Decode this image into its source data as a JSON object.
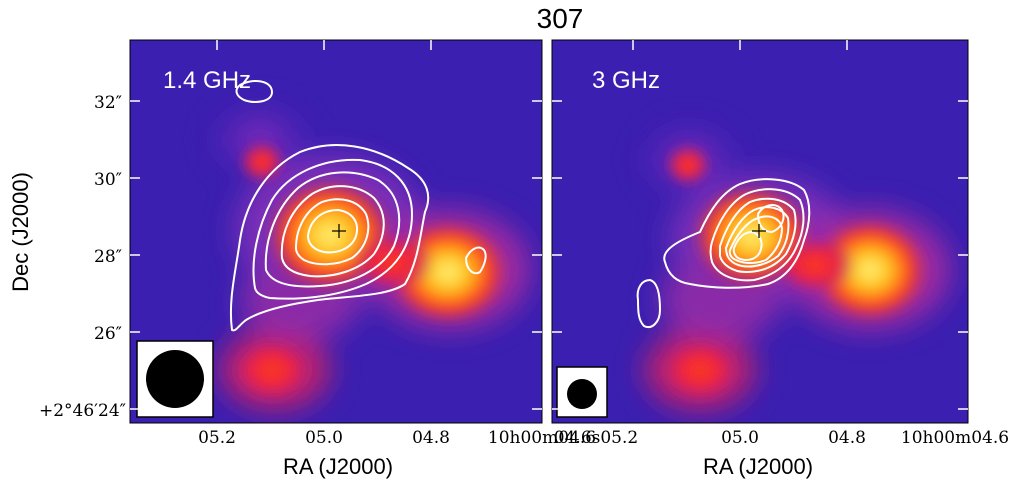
{
  "figure": {
    "title": "307",
    "ylabel": "Dec (J2000)",
    "xlabel": "RA (J2000)"
  },
  "panels": [
    {
      "label": "1.4 GHz",
      "x_tick_labels": [
        "05.2",
        "05.0",
        "04.8",
        "10h00m04.6"
      ],
      "y_tick_labels": [
        "32″",
        "30″",
        "28″",
        "26″",
        "+2°46′24″"
      ]
    },
    {
      "label": "3 GHz",
      "x_tick_labels": [
        "04.6s05.2",
        "05.0",
        "04.8",
        "10h00m04.6"
      ]
    }
  ],
  "colors": {
    "background_map": "#3a1fb0",
    "contour": "#ffffff",
    "hot": "#ffe24a",
    "warm": "#ff3a1a"
  }
}
